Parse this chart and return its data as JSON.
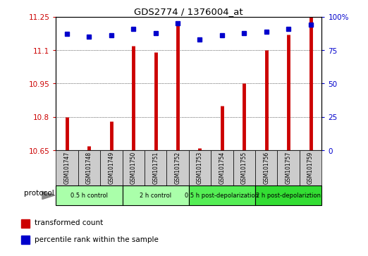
{
  "title": "GDS2774 / 1376004_at",
  "samples": [
    "GSM101747",
    "GSM101748",
    "GSM101749",
    "GSM101750",
    "GSM101751",
    "GSM101752",
    "GSM101753",
    "GSM101754",
    "GSM101755",
    "GSM101756",
    "GSM101757",
    "GSM101759"
  ],
  "red_values": [
    10.8,
    10.67,
    10.78,
    11.12,
    11.09,
    11.22,
    10.66,
    10.85,
    10.95,
    11.1,
    11.17,
    11.25
  ],
  "blue_values": [
    87,
    85,
    86,
    91,
    88,
    95,
    83,
    86,
    88,
    89,
    91,
    94
  ],
  "ylim_left": [
    10.65,
    11.25
  ],
  "ylim_right": [
    0,
    100
  ],
  "yticks_left": [
    10.65,
    10.8,
    10.95,
    11.1,
    11.25
  ],
  "ytick_labels_left": [
    "10.65",
    "10.8",
    "10.95",
    "11.1",
    "11.25"
  ],
  "yticks_right": [
    0,
    25,
    50,
    75,
    100
  ],
  "ytick_labels_right": [
    "0",
    "25",
    "50",
    "75",
    "100%"
  ],
  "groups": [
    {
      "label": "0.5 h control",
      "start": 0,
      "end": 3,
      "color": "#aaffaa"
    },
    {
      "label": "2 h control",
      "start": 3,
      "end": 6,
      "color": "#aaffaa"
    },
    {
      "label": "0.5 h post-depolarization",
      "start": 6,
      "end": 9,
      "color": "#55ee55"
    },
    {
      "label": "2 h post-depolariztion",
      "start": 9,
      "end": 12,
      "color": "#33dd33"
    }
  ],
  "bar_color": "#cc0000",
  "dot_color": "#0000cc",
  "label_color_left": "#cc0000",
  "label_color_right": "#0000cc",
  "bg_color": "#ffffff",
  "grid_color": "#000000",
  "sample_box_color": "#cccccc",
  "legend_red": "transformed count",
  "legend_blue": "percentile rank within the sample",
  "protocol_label": "protocol"
}
